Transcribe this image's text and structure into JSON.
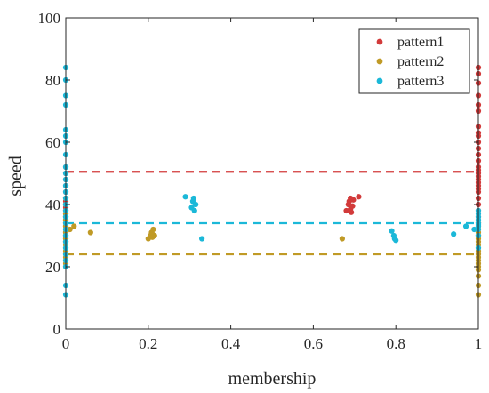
{
  "chart_data": {
    "type": "scatter",
    "title": "",
    "xlabel": "membership",
    "ylabel": "speed",
    "xlim": [
      0,
      1
    ],
    "ylim": [
      0,
      100
    ],
    "xticks": [
      "0",
      "0.2",
      "0.4",
      "0.6",
      "0.8",
      "1"
    ],
    "yticks": [
      "0",
      "20",
      "40",
      "60",
      "80",
      "100"
    ],
    "grid": false,
    "legend_position": "top-right",
    "series": [
      {
        "name": "pattern1",
        "color": "#d23a3a",
        "mean_line": 50.5,
        "points": [
          [
            0,
            28
          ],
          [
            0,
            29
          ],
          [
            0,
            30
          ],
          [
            0,
            31
          ],
          [
            0,
            32
          ],
          [
            0,
            33
          ],
          [
            0,
            34
          ],
          [
            0,
            35
          ],
          [
            0,
            36
          ],
          [
            0,
            37
          ],
          [
            0,
            38
          ],
          [
            0,
            39
          ],
          [
            0,
            40
          ],
          [
            0,
            41
          ],
          [
            0,
            42
          ],
          [
            0,
            44
          ],
          [
            0,
            46
          ],
          [
            0,
            48
          ],
          [
            0,
            50
          ],
          [
            0,
            52
          ],
          [
            0.68,
            38
          ],
          [
            0.685,
            40
          ],
          [
            0.687,
            41
          ],
          [
            0.69,
            42
          ],
          [
            0.69,
            38.5
          ],
          [
            0.692,
            37.5
          ],
          [
            0.695,
            39.5
          ],
          [
            0.697,
            41.5
          ],
          [
            0.71,
            42.5
          ],
          [
            1,
            30
          ],
          [
            1,
            32
          ],
          [
            1,
            34
          ],
          [
            1,
            36
          ],
          [
            1,
            38
          ],
          [
            1,
            40
          ],
          [
            1,
            42
          ],
          [
            1,
            44
          ],
          [
            1,
            45
          ],
          [
            1,
            46
          ],
          [
            1,
            47
          ],
          [
            1,
            48
          ],
          [
            1,
            49
          ],
          [
            1,
            50
          ],
          [
            1,
            51
          ],
          [
            1,
            52
          ],
          [
            1,
            54
          ],
          [
            1,
            56
          ],
          [
            1,
            58
          ],
          [
            1,
            60
          ],
          [
            1,
            62
          ],
          [
            1,
            63
          ],
          [
            1,
            65
          ],
          [
            1,
            70
          ],
          [
            1,
            72
          ],
          [
            1,
            75
          ],
          [
            1,
            79
          ],
          [
            1,
            82
          ],
          [
            1,
            84
          ]
        ]
      },
      {
        "name": "pattern2",
        "color": "#c09a26",
        "mean_line": 24,
        "points": [
          [
            0,
            20
          ],
          [
            0,
            21
          ],
          [
            0,
            22
          ],
          [
            0,
            23
          ],
          [
            0,
            24
          ],
          [
            0,
            25
          ],
          [
            0,
            26
          ],
          [
            0,
            27
          ],
          [
            0,
            28
          ],
          [
            0,
            29
          ],
          [
            0,
            30
          ],
          [
            0,
            31
          ],
          [
            0,
            32
          ],
          [
            0,
            33
          ],
          [
            0,
            34
          ],
          [
            0,
            35
          ],
          [
            0,
            36
          ],
          [
            0,
            37
          ],
          [
            0,
            38
          ],
          [
            0,
            40
          ],
          [
            0,
            42
          ],
          [
            0.01,
            32
          ],
          [
            0.02,
            33
          ],
          [
            0.06,
            31
          ],
          [
            0.2,
            29
          ],
          [
            0.205,
            30
          ],
          [
            0.208,
            31
          ],
          [
            0.21,
            30.5
          ],
          [
            0.21,
            29.5
          ],
          [
            0.212,
            32
          ],
          [
            0.215,
            30
          ],
          [
            0.67,
            29
          ],
          [
            1,
            11
          ],
          [
            1,
            14
          ],
          [
            1,
            17
          ],
          [
            1,
            19
          ],
          [
            1,
            20
          ],
          [
            1,
            21
          ],
          [
            1,
            22
          ],
          [
            1,
            23
          ],
          [
            1,
            24
          ],
          [
            1,
            25
          ],
          [
            1,
            26
          ],
          [
            1,
            27
          ],
          [
            1,
            28
          ],
          [
            1,
            29
          ],
          [
            1,
            30
          ],
          [
            1,
            31
          ],
          [
            1,
            32
          ],
          [
            1,
            33
          ],
          [
            1,
            34
          ]
        ]
      },
      {
        "name": "pattern3",
        "color": "#1bb8d8",
        "mean_line": 34,
        "points": [
          [
            0,
            11
          ],
          [
            0,
            14
          ],
          [
            0,
            20
          ],
          [
            0,
            22
          ],
          [
            0,
            24
          ],
          [
            0,
            26
          ],
          [
            0,
            28
          ],
          [
            0,
            30
          ],
          [
            0,
            32
          ],
          [
            0,
            34
          ],
          [
            0,
            36
          ],
          [
            0,
            38
          ],
          [
            0,
            40
          ],
          [
            0,
            42
          ],
          [
            0,
            44
          ],
          [
            0,
            46
          ],
          [
            0,
            48
          ],
          [
            0,
            50
          ],
          [
            0,
            52
          ],
          [
            0,
            56
          ],
          [
            0,
            60
          ],
          [
            0,
            62
          ],
          [
            0,
            64
          ],
          [
            0,
            72
          ],
          [
            0,
            75
          ],
          [
            0,
            80
          ],
          [
            0,
            84
          ],
          [
            0.29,
            42.5
          ],
          [
            0.305,
            39
          ],
          [
            0.308,
            41
          ],
          [
            0.31,
            42
          ],
          [
            0.312,
            38
          ],
          [
            0.315,
            40
          ],
          [
            0.33,
            29
          ],
          [
            0.79,
            31.5
          ],
          [
            0.795,
            30
          ],
          [
            0.797,
            29
          ],
          [
            0.8,
            28.5
          ],
          [
            0.94,
            30.5
          ],
          [
            0.97,
            33
          ],
          [
            0.99,
            32
          ],
          [
            1,
            26
          ],
          [
            1,
            30
          ],
          [
            1,
            32
          ],
          [
            1,
            33
          ],
          [
            1,
            34
          ],
          [
            1,
            35
          ],
          [
            1,
            36
          ],
          [
            1,
            37
          ],
          [
            1,
            38
          ],
          [
            1,
            33.5
          ]
        ]
      }
    ]
  }
}
